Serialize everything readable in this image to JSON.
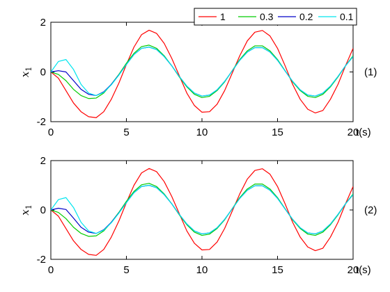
{
  "colors": {
    "1": "#ff0000",
    "0.3": "#00cc00",
    "0.2": "#0000c8",
    "0.1": "#00e5ee",
    "axes": "#000000",
    "background": "#ffffff"
  },
  "chart_data": [
    {
      "type": "line",
      "panel_label": "(1)",
      "xlabel": "t(s)",
      "ylabel": "x",
      "ylabel_subscript": "1",
      "xlim": [
        0,
        20
      ],
      "ylim": [
        -2,
        2
      ],
      "xticks": [
        "0",
        "5",
        "10",
        "15",
        "20"
      ],
      "yticks": [
        "2",
        "0",
        "-2"
      ],
      "grid": false,
      "legend": {
        "placement": "top-right",
        "entries": [
          "1",
          "0.3",
          "0.2",
          "0.1"
        ]
      },
      "series": [
        {
          "name": "1",
          "color_key": "1",
          "x": [
            0,
            0.5,
            1,
            1.5,
            2,
            2.5,
            3,
            3.5,
            4,
            4.5,
            5,
            5.5,
            6,
            6.5,
            7,
            7.5,
            8,
            8.5,
            9,
            9.5,
            10,
            10.5,
            11,
            11.5,
            12,
            12.5,
            13,
            13.5,
            14,
            14.5,
            15,
            15.5,
            16,
            16.5,
            17,
            17.5,
            18,
            18.5,
            19,
            19.5,
            20
          ],
          "y": [
            0,
            -0.25,
            -0.75,
            -1.25,
            -1.6,
            -1.8,
            -1.84,
            -1.6,
            -1.1,
            -0.45,
            0.3,
            1.0,
            1.5,
            1.68,
            1.55,
            1.15,
            0.55,
            -0.15,
            -0.85,
            -1.35,
            -1.62,
            -1.6,
            -1.3,
            -0.75,
            -0.05,
            0.65,
            1.25,
            1.6,
            1.67,
            1.45,
            0.95,
            0.25,
            -0.5,
            -1.1,
            -1.5,
            -1.65,
            -1.55,
            -1.1,
            -0.5,
            0.25,
            0.95
          ]
        },
        {
          "name": "0.3",
          "color_key": "0.3",
          "x": [
            0,
            0.5,
            1,
            1.5,
            2,
            2.5,
            3,
            3.5,
            4,
            4.5,
            5,
            5.5,
            6,
            6.5,
            7,
            7.5,
            8,
            8.5,
            9,
            9.5,
            10,
            10.5,
            11,
            11.5,
            12,
            12.5,
            13,
            13.5,
            14,
            14.5,
            15,
            15.5,
            16,
            16.5,
            17,
            17.5,
            18,
            18.5,
            19,
            19.5,
            20
          ],
          "y": [
            0,
            -0.1,
            -0.35,
            -0.7,
            -0.95,
            -1.07,
            -1.05,
            -0.85,
            -0.5,
            -0.1,
            0.35,
            0.75,
            1.02,
            1.08,
            0.95,
            0.65,
            0.25,
            -0.2,
            -0.6,
            -0.9,
            -1.03,
            -0.98,
            -0.75,
            -0.4,
            0.05,
            0.5,
            0.85,
            1.05,
            1.05,
            0.85,
            0.5,
            0.05,
            -0.4,
            -0.75,
            -0.98,
            -1.03,
            -0.9,
            -0.6,
            -0.2,
            0.25,
            0.65
          ]
        },
        {
          "name": "0.2",
          "color_key": "0.2",
          "x": [
            0,
            0.5,
            1,
            1.5,
            2,
            2.5,
            3,
            3.5,
            4,
            4.5,
            5,
            5.5,
            6,
            6.5,
            7,
            7.5,
            8,
            8.5,
            9,
            9.5,
            10,
            10.5,
            11,
            11.5,
            12,
            12.5,
            13,
            13.5,
            14,
            14.5,
            15,
            15.5,
            16,
            16.5,
            17,
            17.5,
            18,
            18.5,
            19,
            19.5,
            20
          ],
          "y": [
            0,
            0.05,
            0.0,
            -0.35,
            -0.7,
            -0.9,
            -0.95,
            -0.8,
            -0.5,
            -0.12,
            0.3,
            0.7,
            0.95,
            1.0,
            0.9,
            0.62,
            0.25,
            -0.18,
            -0.57,
            -0.85,
            -0.97,
            -0.93,
            -0.72,
            -0.38,
            0.04,
            0.47,
            0.8,
            0.98,
            0.98,
            0.8,
            0.47,
            0.04,
            -0.38,
            -0.72,
            -0.93,
            -0.97,
            -0.85,
            -0.57,
            -0.18,
            0.25,
            0.62
          ]
        },
        {
          "name": "0.1",
          "color_key": "0.1",
          "x": [
            0,
            0.5,
            1,
            1.5,
            2,
            2.5,
            3,
            3.5,
            4,
            4.5,
            5,
            5.5,
            6,
            6.5,
            7,
            7.5,
            8,
            8.5,
            9,
            9.5,
            10,
            10.5,
            11,
            11.5,
            12,
            12.5,
            13,
            13.5,
            14,
            14.5,
            15,
            15.5,
            16,
            16.5,
            17,
            17.5,
            18,
            18.5,
            19,
            19.5,
            20
          ],
          "y": [
            0,
            0.42,
            0.5,
            0.1,
            -0.5,
            -0.85,
            -0.95,
            -0.82,
            -0.52,
            -0.13,
            0.3,
            0.7,
            0.95,
            1.0,
            0.9,
            0.62,
            0.25,
            -0.18,
            -0.57,
            -0.85,
            -0.97,
            -0.93,
            -0.72,
            -0.38,
            0.04,
            0.47,
            0.8,
            0.98,
            0.98,
            0.8,
            0.47,
            0.04,
            -0.38,
            -0.72,
            -0.93,
            -0.97,
            -0.85,
            -0.57,
            -0.18,
            0.25,
            0.62
          ]
        }
      ]
    },
    {
      "type": "line",
      "panel_label": "(2)",
      "xlabel": "t(s)",
      "ylabel": "x",
      "ylabel_subscript": "1",
      "xlim": [
        0,
        20
      ],
      "ylim": [
        -2,
        2
      ],
      "xticks": [
        "0",
        "5",
        "10",
        "15",
        "20"
      ],
      "yticks": [
        "2",
        "0",
        "-2"
      ],
      "grid": false,
      "series": [
        {
          "name": "1",
          "color_key": "1",
          "x": [
            0,
            0.5,
            1,
            1.5,
            2,
            2.5,
            3,
            3.5,
            4,
            4.5,
            5,
            5.5,
            6,
            6.5,
            7,
            7.5,
            8,
            8.5,
            9,
            9.5,
            10,
            10.5,
            11,
            11.5,
            12,
            12.5,
            13,
            13.5,
            14,
            14.5,
            15,
            15.5,
            16,
            16.5,
            17,
            17.5,
            18,
            18.5,
            19,
            19.5,
            20
          ],
          "y": [
            0,
            -0.25,
            -0.75,
            -1.25,
            -1.6,
            -1.8,
            -1.84,
            -1.6,
            -1.1,
            -0.45,
            0.3,
            1.0,
            1.5,
            1.68,
            1.55,
            1.15,
            0.55,
            -0.15,
            -0.85,
            -1.35,
            -1.62,
            -1.6,
            -1.3,
            -0.75,
            -0.05,
            0.65,
            1.25,
            1.6,
            1.67,
            1.45,
            0.95,
            0.25,
            -0.5,
            -1.1,
            -1.5,
            -1.65,
            -1.55,
            -1.1,
            -0.5,
            0.25,
            0.95
          ]
        },
        {
          "name": "0.3",
          "color_key": "0.3",
          "x": [
            0,
            0.5,
            1,
            1.5,
            2,
            2.5,
            3,
            3.5,
            4,
            4.5,
            5,
            5.5,
            6,
            6.5,
            7,
            7.5,
            8,
            8.5,
            9,
            9.5,
            10,
            10.5,
            11,
            11.5,
            12,
            12.5,
            13,
            13.5,
            14,
            14.5,
            15,
            15.5,
            16,
            16.5,
            17,
            17.5,
            18,
            18.5,
            19,
            19.5,
            20
          ],
          "y": [
            0,
            -0.1,
            -0.35,
            -0.7,
            -0.95,
            -1.07,
            -1.05,
            -0.85,
            -0.5,
            -0.1,
            0.35,
            0.75,
            1.02,
            1.08,
            0.95,
            0.65,
            0.25,
            -0.2,
            -0.6,
            -0.9,
            -1.03,
            -0.98,
            -0.75,
            -0.4,
            0.05,
            0.5,
            0.85,
            1.05,
            1.05,
            0.85,
            0.5,
            0.05,
            -0.4,
            -0.75,
            -0.98,
            -1.03,
            -0.9,
            -0.6,
            -0.2,
            0.25,
            0.65
          ]
        },
        {
          "name": "0.2",
          "color_key": "0.2",
          "x": [
            0,
            0.5,
            1,
            1.5,
            2,
            2.5,
            3,
            3.5,
            4,
            4.5,
            5,
            5.5,
            6,
            6.5,
            7,
            7.5,
            8,
            8.5,
            9,
            9.5,
            10,
            10.5,
            11,
            11.5,
            12,
            12.5,
            13,
            13.5,
            14,
            14.5,
            15,
            15.5,
            16,
            16.5,
            17,
            17.5,
            18,
            18.5,
            19,
            19.5,
            20
          ],
          "y": [
            0,
            0.07,
            0.02,
            -0.33,
            -0.7,
            -0.9,
            -0.95,
            -0.8,
            -0.5,
            -0.12,
            0.3,
            0.7,
            0.95,
            1.0,
            0.9,
            0.62,
            0.25,
            -0.18,
            -0.57,
            -0.85,
            -0.97,
            -0.93,
            -0.72,
            -0.38,
            0.04,
            0.47,
            0.8,
            0.98,
            0.98,
            0.8,
            0.47,
            0.04,
            -0.38,
            -0.72,
            -0.93,
            -0.97,
            -0.85,
            -0.57,
            -0.18,
            0.25,
            0.62
          ]
        },
        {
          "name": "0.1",
          "color_key": "0.1",
          "x": [
            0,
            0.5,
            1,
            1.5,
            2,
            2.5,
            3,
            3.5,
            4,
            4.5,
            5,
            5.5,
            6,
            6.5,
            7,
            7.5,
            8,
            8.5,
            9,
            9.5,
            10,
            10.5,
            11,
            11.5,
            12,
            12.5,
            13,
            13.5,
            14,
            14.5,
            15,
            15.5,
            16,
            16.5,
            17,
            17.5,
            18,
            18.5,
            19,
            19.5,
            20
          ],
          "y": [
            0,
            0.42,
            0.5,
            0.1,
            -0.5,
            -0.85,
            -0.95,
            -0.82,
            -0.52,
            -0.13,
            0.3,
            0.7,
            0.95,
            1.0,
            0.9,
            0.62,
            0.25,
            -0.18,
            -0.57,
            -0.85,
            -0.97,
            -0.93,
            -0.72,
            -0.38,
            0.04,
            0.47,
            0.8,
            0.98,
            0.98,
            0.8,
            0.47,
            0.04,
            -0.38,
            -0.72,
            -0.93,
            -0.97,
            -0.85,
            -0.57,
            -0.18,
            0.25,
            0.62
          ]
        }
      ]
    }
  ]
}
